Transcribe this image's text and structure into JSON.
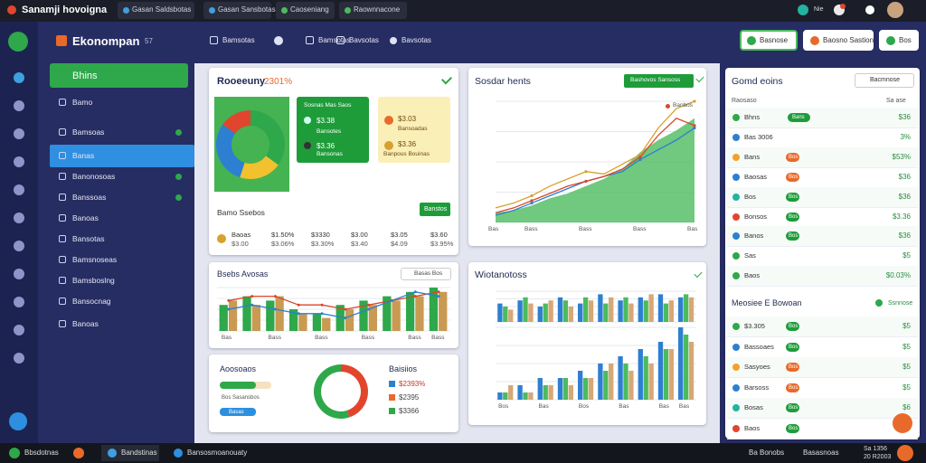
{
  "tabs": [
    "Sanamji hovoigna",
    "Gasan Saldsbotas",
    "Gasan Sansbotas",
    "Caoseniang",
    "Raownnacone"
  ],
  "user": {
    "label": "Nie"
  },
  "app": {
    "title": "Ekonompan",
    "badge": "57"
  },
  "toolbar": [
    "Bamsotas",
    "Bamsotas",
    "Bavsotas"
  ],
  "actions": [
    "Basnose",
    "Baosno Sastion",
    "Bos"
  ],
  "sidebar": {
    "button": "Bhins",
    "items": [
      "Bamo",
      "Bamsoas",
      "Banas",
      "Banonosoas",
      "Banssoas",
      "Banoas",
      "Bansotas",
      "Bamsnoseas",
      "Bamsboslng",
      "Bansocnag",
      "Banoas"
    ]
  },
  "revenue": {
    "title": "Rooeeuny",
    "highlight": "2301%",
    "green_card": [
      "Sosnas Mas Saos",
      "$3.38",
      "Bansotes",
      "$3.36",
      "Bansonas"
    ],
    "yellow_card": [
      "$3.03",
      "Bansoadas",
      "$3.36",
      "Banpous Bouinas"
    ],
    "section": "Bamo Ssebos",
    "button": "Banstos",
    "stats": [
      [
        "Baoas",
        "$3.00"
      ],
      [
        "$1.50%",
        "$3.06%"
      ],
      [
        "$3330",
        "$3.30%"
      ],
      [
        "$3.00",
        "$3.40"
      ],
      [
        "$3.05",
        "$4.09"
      ],
      [
        "$3.60",
        "$3.95%"
      ]
    ]
  },
  "feed": {
    "title": "Gomd eoins",
    "button": "Bacmnose",
    "head": [
      "Raosaso",
      "Sa ase"
    ],
    "rows": [
      {
        "label": "Bhns",
        "badge": "Bans",
        "value": "$36"
      },
      {
        "label": "Bas 3006",
        "badge": "",
        "value": "3%"
      },
      {
        "label": "Bans",
        "badge": "Bos",
        "value": "$53%"
      },
      {
        "label": "Baosas",
        "badge": "Bos",
        "value": "$36"
      },
      {
        "label": "Bos",
        "badge": "Bos",
        "value": "$36"
      },
      {
        "label": "Bonsos",
        "badge": "Bos",
        "value": "$3.36"
      },
      {
        "label": "Banos",
        "badge": "Bos",
        "value": "$36"
      },
      {
        "label": "Sas",
        "badge": "",
        "value": "$5"
      },
      {
        "label": "Baos",
        "badge": "",
        "value": "$0.03%"
      }
    ],
    "section": "Meosiee E Bowoan",
    "section_button": "Ssnnose",
    "rows2": [
      {
        "label": "$3.305",
        "badge": "Bos",
        "value": "$5"
      },
      {
        "label": "Bassoaes",
        "badge": "Bos",
        "value": "$5"
      },
      {
        "label": "Sasyoes",
        "badge": "Bos",
        "value": "$5"
      },
      {
        "label": "Barsoss",
        "badge": "Bos",
        "value": "$5"
      },
      {
        "label": "Bosas",
        "badge": "Bos",
        "value": "$6"
      },
      {
        "label": "Baos",
        "badge": "Bos",
        "value": "$6"
      }
    ]
  },
  "taskbar": {
    "left": [
      "Bbsdotnas",
      "Bandstinas",
      "Bansosmoanouaty"
    ],
    "right": [
      "Ba Bonobs",
      "Basasnoas",
      "Sa 1356",
      "20 R2003"
    ]
  },
  "bottom_card": {
    "title": "Aoosoaos",
    "bar1": "Bos Sasansbos",
    "bar2": "Basas",
    "legend_title": "Baisiios",
    "legend": [
      "$2393%",
      "$2395",
      "$3366"
    ]
  },
  "chart_data": [
    {
      "type": "pie",
      "values": [
        35,
        20,
        30,
        15
      ],
      "colors": [
        "#2ea84a",
        "#f2c12e",
        "#2d7fd1",
        "#e2452e"
      ]
    },
    {
      "type": "area",
      "title": "Sosdar hents",
      "button": "Bashovos Sansoss",
      "legend": "Banbos",
      "categories": [
        "Bas",
        null,
        "Bass",
        null,
        null,
        "Bass",
        null,
        null,
        "Bass",
        null,
        null,
        "Bas"
      ],
      "ylim": [
        0,
        100
      ],
      "series": [
        {
          "style": "area",
          "color": "#4cbb5e",
          "values": [
            8,
            10,
            14,
            20,
            24,
            30,
            36,
            44,
            58,
            68,
            76,
            86
          ]
        },
        {
          "style": "line",
          "color": "#2d7fd1",
          "values": [
            6,
            10,
            16,
            22,
            28,
            34,
            38,
            42,
            52,
            60,
            68,
            78
          ]
        },
        {
          "style": "line",
          "color": "#d6a12e",
          "values": [
            12,
            16,
            22,
            30,
            36,
            42,
            40,
            48,
            56,
            78,
            94,
            100
          ]
        },
        {
          "name": "Banbos",
          "style": "line",
          "color": "#d9472b",
          "values": [
            8,
            12,
            18,
            24,
            30,
            34,
            38,
            44,
            54,
            72,
            86,
            80
          ]
        }
      ]
    },
    {
      "type": "bar",
      "title": "Bsebs Avosas",
      "button": "Basas Bos",
      "categories": [
        "Bas",
        null,
        "Bass",
        null,
        "Bass",
        null,
        "Bass",
        null,
        "Bass",
        "Bass"
      ],
      "ylim": [
        0,
        10
      ],
      "series": [
        {
          "style": "bar",
          "color": "#2ea84a",
          "values": [
            6,
            8,
            7,
            5,
            4,
            6,
            7,
            8,
            9,
            10
          ]
        },
        {
          "style": "bar",
          "color": "#c99a52",
          "values": [
            7,
            6,
            8,
            4,
            3,
            5,
            6,
            7,
            8,
            9
          ]
        },
        {
          "style": "line",
          "color": "#d9472b",
          "values": [
            7,
            8,
            8,
            6,
            6,
            5,
            6,
            7,
            8,
            9
          ]
        },
        {
          "style": "line",
          "color": "#2d7fd1",
          "values": [
            5,
            6,
            5,
            4,
            4,
            3,
            5,
            7,
            9,
            8
          ]
        }
      ]
    },
    {
      "type": "bar",
      "title": "Wiotanotoss",
      "categories": [
        null,
        null,
        null,
        null,
        null,
        null,
        null,
        null,
        null,
        null
      ],
      "ylim": [
        0,
        10
      ],
      "series": [
        {
          "style": "bar",
          "color": "#2d7fd1",
          "values": [
            6,
            7,
            5,
            8,
            6,
            9,
            7,
            8,
            9,
            8
          ]
        },
        {
          "style": "bar",
          "color": "#4cbb5e",
          "values": [
            5,
            8,
            6,
            7,
            8,
            6,
            8,
            7,
            6,
            9
          ]
        },
        {
          "style": "bar",
          "color": "#d6a876",
          "values": [
            4,
            6,
            7,
            5,
            7,
            8,
            6,
            9,
            7,
            8
          ]
        }
      ]
    },
    {
      "type": "bar",
      "categories": [
        "Bos",
        null,
        "Bas",
        null,
        "Bos",
        null,
        "Bas",
        null,
        "Bas",
        "Bas"
      ],
      "ylim": [
        0,
        10
      ],
      "series": [
        {
          "style": "bar",
          "color": "#2d7fd1",
          "values": [
            1,
            2,
            3,
            3,
            4,
            5,
            6,
            7,
            8,
            10
          ]
        },
        {
          "style": "bar",
          "color": "#4cbb5e",
          "values": [
            1,
            1,
            2,
            3,
            3,
            4,
            5,
            6,
            7,
            9
          ]
        },
        {
          "style": "bar",
          "color": "#d6a876",
          "values": [
            2,
            1,
            2,
            2,
            3,
            5,
            4,
            5,
            7,
            8
          ]
        }
      ]
    },
    {
      "type": "pie",
      "values": [
        45,
        55
      ],
      "colors": [
        "#e2452e",
        "#2ea84a"
      ]
    }
  ]
}
